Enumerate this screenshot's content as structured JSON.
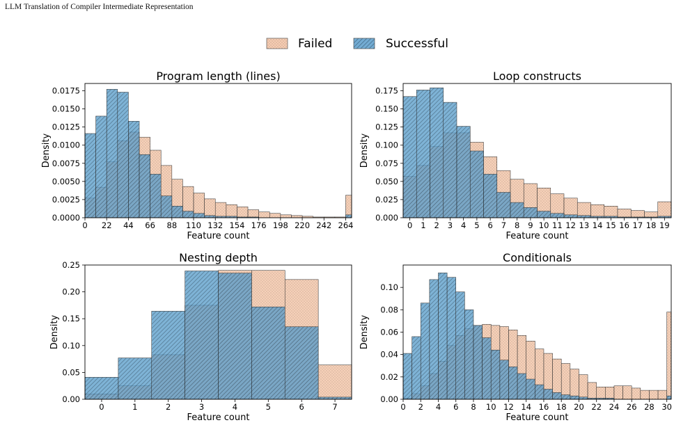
{
  "header": {
    "running_title": "LLM Translation of Compiler Intermediate Representation"
  },
  "legend": {
    "placement": "top-center",
    "items": [
      {
        "label": "Failed",
        "color": "#f4c3a4",
        "pattern": "dots"
      },
      {
        "label": "Successful",
        "color": "#5a9dcb",
        "pattern": "diagonal-hatch"
      }
    ]
  },
  "chart_data": [
    {
      "type": "bar",
      "title": "Program length (lines)",
      "xlabel": "Feature count",
      "ylabel": "Density",
      "xlim": [
        0,
        270
      ],
      "ylim": [
        0,
        0.0185
      ],
      "bin_width": 11,
      "bin_start": 0,
      "xticks": [
        "0",
        "22",
        "44",
        "66",
        "88",
        "110",
        "132",
        "154",
        "176",
        "198",
        "220",
        "242",
        "264"
      ],
      "yticks": [
        "0.0000",
        "0.0025",
        "0.0050",
        "0.0075",
        "0.0100",
        "0.0125",
        "0.0150",
        "0.0175"
      ],
      "series": [
        {
          "name": "Failed",
          "values": [
            0.0027,
            0.0042,
            0.0077,
            0.0106,
            0.0118,
            0.0111,
            0.0093,
            0.0072,
            0.0053,
            0.0043,
            0.0034,
            0.0026,
            0.0021,
            0.0018,
            0.0015,
            0.0011,
            0.0008,
            0.0006,
            0.0004,
            0.0003,
            0.0002,
            0.0001,
            0.0001,
            0.0001,
            0.0031
          ]
        },
        {
          "name": "Successful",
          "values": [
            0.0116,
            0.014,
            0.0177,
            0.0173,
            0.0133,
            0.0087,
            0.006,
            0.003,
            0.0016,
            0.0009,
            0.0006,
            0.0003,
            0.0002,
            0.0002,
            0.0001,
            0.0001,
            0.0,
            0.0,
            0.0,
            0.0,
            0.0,
            0.0,
            0.0,
            0.0,
            0.0004
          ]
        }
      ]
    },
    {
      "type": "bar",
      "title": "Loop constructs",
      "xlabel": "Feature count",
      "ylabel": "Density",
      "xlim": [
        -0.5,
        19.5
      ],
      "ylim": [
        0,
        0.185
      ],
      "bin_width": 1,
      "bin_start": -0.5,
      "xticks": [
        "0",
        "1",
        "2",
        "3",
        "4",
        "5",
        "6",
        "7",
        "8",
        "9",
        "10",
        "11",
        "12",
        "13",
        "14",
        "15",
        "16",
        "17",
        "18",
        "19"
      ],
      "yticks": [
        "0.000",
        "0.025",
        "0.050",
        "0.075",
        "0.100",
        "0.125",
        "0.150",
        "0.175"
      ],
      "series": [
        {
          "name": "Failed",
          "values": [
            0.057,
            0.072,
            0.098,
            0.117,
            0.117,
            0.104,
            0.084,
            0.065,
            0.053,
            0.047,
            0.041,
            0.033,
            0.027,
            0.021,
            0.018,
            0.016,
            0.012,
            0.01,
            0.008,
            0.022
          ]
        },
        {
          "name": "Successful",
          "values": [
            0.167,
            0.176,
            0.179,
            0.159,
            0.126,
            0.092,
            0.06,
            0.035,
            0.021,
            0.014,
            0.009,
            0.006,
            0.004,
            0.003,
            0.002,
            0.002,
            0.001,
            0.001,
            0.001,
            0.002
          ]
        }
      ]
    },
    {
      "type": "bar",
      "title": "Nesting depth",
      "xlabel": "Feature count",
      "ylabel": "Density",
      "xlim": [
        -0.5,
        7.5
      ],
      "ylim": [
        0,
        0.25
      ],
      "bin_width": 1,
      "bin_start": -0.5,
      "xticks": [
        "0",
        "1",
        "2",
        "3",
        "4",
        "5",
        "6",
        "7"
      ],
      "yticks": [
        "0.00",
        "0.05",
        "0.10",
        "0.15",
        "0.20",
        "0.25"
      ],
      "series": [
        {
          "name": "Failed",
          "values": [
            0.01,
            0.025,
            0.083,
            0.175,
            0.24,
            0.24,
            0.223,
            0.064
          ]
        },
        {
          "name": "Successful",
          "values": [
            0.041,
            0.077,
            0.164,
            0.239,
            0.235,
            0.172,
            0.135,
            0.004
          ]
        }
      ]
    },
    {
      "type": "bar",
      "title": "Conditionals",
      "xlabel": "Feature count",
      "ylabel": "Density",
      "xlim": [
        0,
        30.5
      ],
      "ylim": [
        0,
        0.12
      ],
      "bin_width": 1,
      "bin_start": 0,
      "xticks": [
        "0",
        "2",
        "4",
        "6",
        "8",
        "10",
        "12",
        "14",
        "16",
        "18",
        "20",
        "22",
        "24",
        "26",
        "28",
        "30"
      ],
      "yticks": [
        "0.00",
        "0.02",
        "0.04",
        "0.06",
        "0.08",
        "0.10"
      ],
      "series": [
        {
          "name": "Failed",
          "values": [
            0.001,
            0.005,
            0.012,
            0.023,
            0.034,
            0.048,
            0.057,
            0.063,
            0.066,
            0.067,
            0.066,
            0.065,
            0.062,
            0.057,
            0.052,
            0.045,
            0.041,
            0.036,
            0.032,
            0.027,
            0.022,
            0.015,
            0.011,
            0.011,
            0.012,
            0.012,
            0.01,
            0.008,
            0.008,
            0.008,
            0.078
          ]
        },
        {
          "name": "Successful",
          "values": [
            0.041,
            0.056,
            0.086,
            0.107,
            0.113,
            0.109,
            0.096,
            0.08,
            0.066,
            0.055,
            0.044,
            0.035,
            0.029,
            0.023,
            0.018,
            0.013,
            0.009,
            0.006,
            0.004,
            0.003,
            0.002,
            0.001,
            0.001,
            0.001,
            0.0,
            0.0,
            0.0,
            0.0,
            0.0,
            0.0,
            0.003
          ]
        }
      ]
    }
  ]
}
